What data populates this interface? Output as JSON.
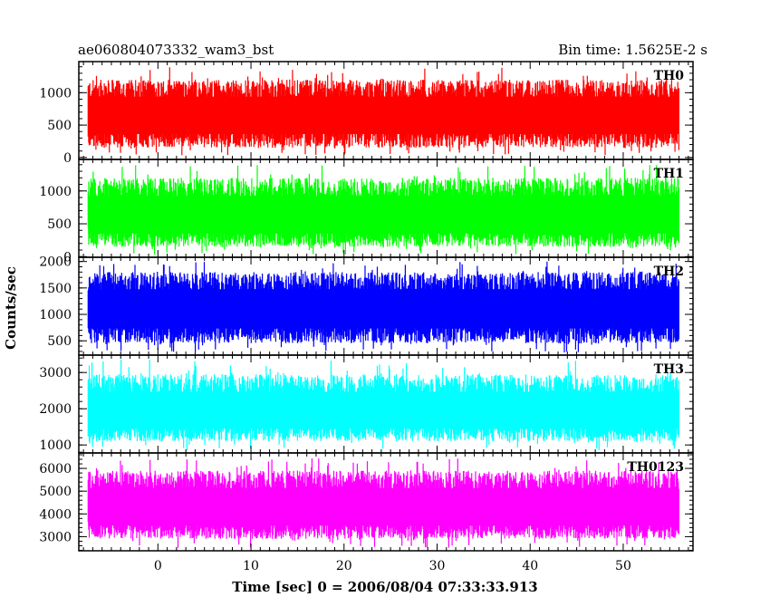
{
  "header": {
    "object_name": "ae060804073332_wam3_bst",
    "bin_time": "Bin time: 1.5625E-2 s"
  },
  "chart_data": {
    "type": "line",
    "title": "ae060804073332_wam3_bst",
    "xlabel": "Time [sec] 0 = 2006/08/04 07:33:33.913",
    "ylabel": "Counts/sec",
    "xlim": [
      -8.5,
      57.5
    ],
    "x_ticks": [
      0,
      10,
      20,
      30,
      40,
      50
    ],
    "data_x_range": [
      -7.5,
      56.0
    ],
    "panels": [
      {
        "name": "TH0",
        "color": "#ff0000",
        "ylim": [
          -30,
          1480
        ],
        "y_ticks": [
          0,
          500,
          1000
        ],
        "band": {
          "mean": 620,
          "typical_min": 150,
          "typical_max": 1200,
          "max": 1400,
          "min": 30
        }
      },
      {
        "name": "TH1",
        "color": "#00ff00",
        "ylim": [
          -10,
          1480
        ],
        "y_ticks": [
          0,
          500,
          1000
        ],
        "band": {
          "mean": 600,
          "typical_min": 150,
          "typical_max": 1200,
          "max": 1400,
          "min": 30
        }
      },
      {
        "name": "TH2",
        "color": "#0000ff",
        "ylim": [
          230,
          2080
        ],
        "y_ticks": [
          500,
          1000,
          1500,
          2000
        ],
        "band": {
          "mean": 1080,
          "typical_min": 450,
          "typical_max": 1800,
          "max": 2000,
          "min": 280
        }
      },
      {
        "name": "TH3",
        "color": "#00ffff",
        "ylim": [
          780,
          3480
        ],
        "y_ticks": [
          1000,
          2000,
          3000
        ],
        "band": {
          "mean": 1880,
          "typical_min": 1100,
          "typical_max": 2950,
          "max": 3350,
          "min": 850
        }
      },
      {
        "name": "TH0123",
        "color": "#ff00ff",
        "ylim": [
          2380,
          6680
        ],
        "y_ticks": [
          3000,
          4000,
          5000,
          6000
        ],
        "band": {
          "mean": 4200,
          "typical_min": 2900,
          "typical_max": 5900,
          "max": 6450,
          "min": 2480
        }
      }
    ]
  }
}
